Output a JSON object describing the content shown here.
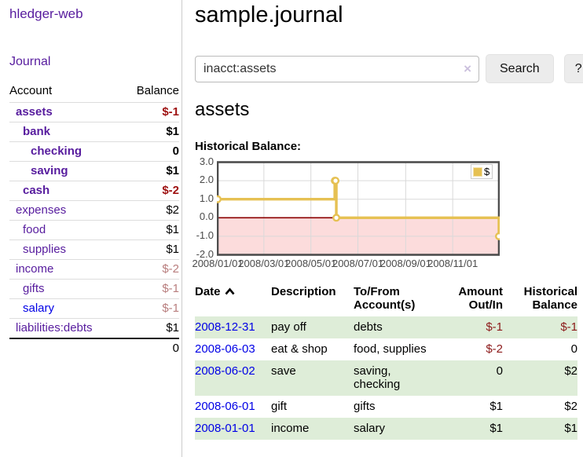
{
  "sidebar": {
    "app_title": "hledger-web",
    "nav_journal": "Journal",
    "headers": {
      "account": "Account",
      "balance": "Balance"
    },
    "rows": [
      {
        "account": "assets",
        "balance": "$-1"
      },
      {
        "account": "bank",
        "balance": "$1"
      },
      {
        "account": "checking",
        "balance": "0"
      },
      {
        "account": "saving",
        "balance": "$1"
      },
      {
        "account": "cash",
        "balance": "$-2"
      },
      {
        "account": "expenses",
        "balance": "$2"
      },
      {
        "account": "food",
        "balance": "$1"
      },
      {
        "account": "supplies",
        "balance": "$1"
      },
      {
        "account": "income",
        "balance": "$-2"
      },
      {
        "account": "gifts",
        "balance": "$-1"
      },
      {
        "account": "salary",
        "balance": "$-1"
      },
      {
        "account": "liabilities:debts",
        "balance": "$1"
      }
    ],
    "total": "0"
  },
  "main": {
    "title": "sample.journal",
    "search": {
      "value": "inacct:assets",
      "clear_icon": "×",
      "button_label": "Search",
      "help_label": "?"
    },
    "account_heading": "assets",
    "chart_heading": "Historical Balance:"
  },
  "chart_data": {
    "type": "line",
    "step": true,
    "series": [
      {
        "name": "$",
        "points": [
          [
            "2008-01-01",
            1
          ],
          [
            "2008-06-01",
            2
          ],
          [
            "2008-06-02",
            2
          ],
          [
            "2008-06-03",
            0
          ],
          [
            "2008-12-31",
            -1
          ]
        ]
      }
    ],
    "x_ticks": [
      "2008/01/01",
      "2008/03/01",
      "2008/05/01",
      "2008/07/01",
      "2008/09/01",
      "2008/11/01"
    ],
    "y_ticks": [
      3.0,
      2.0,
      1.0,
      0.0,
      -1.0,
      -2.0
    ],
    "xrange": [
      "2008-01-01",
      "2008-12-31"
    ],
    "ylim": [
      -2,
      3
    ],
    "grid": true,
    "legend": {
      "label": "$",
      "position": "top-right"
    },
    "colors": {
      "line": "#e6c153",
      "marker_fill": "#ffffff",
      "negative_region": "#fcdcdc",
      "zero_line": "#8b0000",
      "grid": "#d9d9d9",
      "border": "#4d4d4d"
    }
  },
  "register": {
    "headers": {
      "date": "Date",
      "description": "Description",
      "tofrom_line1": "To/From",
      "tofrom_line2": "Account(s)",
      "amount_line1": "Amount",
      "amount_line2": "Out/In",
      "balance_line1": "Historical",
      "balance_line2": "Balance"
    },
    "rows": [
      {
        "date": "2008-12-31",
        "description": "pay off",
        "accounts": "debts",
        "amount": "$-1",
        "balance": "$-1"
      },
      {
        "date": "2008-06-03",
        "description": "eat & shop",
        "accounts": "food, supplies",
        "amount": "$-2",
        "balance": "0"
      },
      {
        "date": "2008-06-02",
        "description": "save",
        "accounts": "saving, checking",
        "amount": "0",
        "balance": "$2"
      },
      {
        "date": "2008-06-01",
        "description": "gift",
        "accounts": "gifts",
        "amount": "$1",
        "balance": "$2"
      },
      {
        "date": "2008-01-01",
        "description": "income",
        "accounts": "salary",
        "amount": "$1",
        "balance": "$1"
      }
    ]
  }
}
